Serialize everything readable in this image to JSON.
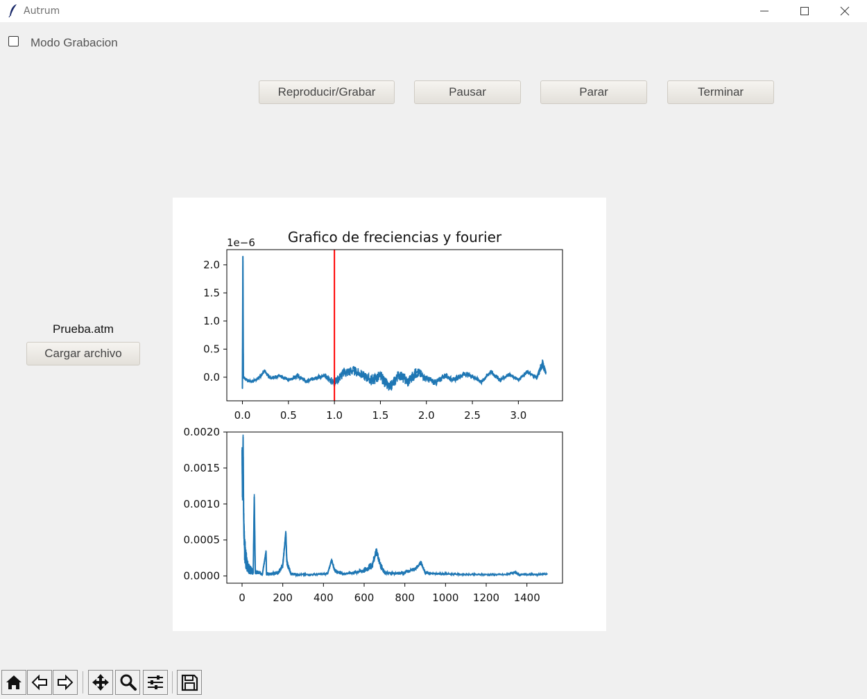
{
  "window": {
    "title": "Autrum",
    "icon": "feather-icon",
    "controls": [
      "minimize-icon",
      "maximize-icon",
      "close-icon"
    ]
  },
  "record_mode": {
    "label": "Modo Grabacion",
    "checked": false
  },
  "controls": {
    "play_record": "Reproducir/Grabar",
    "pause": "Pausar",
    "stop": "Parar",
    "finish": "Terminar"
  },
  "file": {
    "name": "Prueba.atm",
    "load_label": "Cargar archivo"
  },
  "chart_data": [
    {
      "type": "line",
      "title": "Grafico de freciencias y fourier",
      "offset_label": "1e−6",
      "xlim": [
        -0.17,
        3.48
      ],
      "ylim": [
        -0.42,
        2.27
      ],
      "xticks": [
        "0.0",
        "0.5",
        "1.0",
        "1.5",
        "2.0",
        "2.5",
        "3.0"
      ],
      "xtick_values": [
        0.0,
        0.5,
        1.0,
        1.5,
        2.0,
        2.5,
        3.0
      ],
      "yticks": [
        "0.0",
        "0.5",
        "1.0",
        "1.5",
        "2.0"
      ],
      "ytick_values": [
        0.0,
        0.5,
        1.0,
        1.5,
        2.0
      ],
      "series": [
        {
          "color": "#1f77b4",
          "x": [
            0.0,
            0.005,
            0.01,
            0.05,
            0.1,
            0.15,
            0.2,
            0.24,
            0.3,
            0.4,
            0.5,
            0.6,
            0.7,
            0.8,
            0.9,
            1.0,
            1.1,
            1.2,
            1.3,
            1.4,
            1.5,
            1.6,
            1.7,
            1.8,
            1.9,
            2.0,
            2.1,
            2.2,
            2.3,
            2.4,
            2.5,
            2.6,
            2.7,
            2.8,
            2.9,
            3.0,
            3.1,
            3.2,
            3.26,
            3.3
          ],
          "y": [
            -0.2,
            2.15,
            0.0,
            -0.05,
            -0.08,
            -0.04,
            0.02,
            0.12,
            -0.02,
            0.03,
            -0.05,
            0.02,
            -0.08,
            0.0,
            0.02,
            -0.1,
            0.08,
            0.12,
            0.05,
            -0.05,
            0.02,
            -0.2,
            0.05,
            -0.08,
            0.1,
            -0.02,
            -0.1,
            0.03,
            -0.05,
            0.05,
            0.02,
            -0.08,
            0.1,
            -0.05,
            0.05,
            -0.05,
            0.1,
            -0.02,
            0.25,
            0.08
          ],
          "band": [
            0.05,
            0.3,
            0.05,
            0.05,
            0.05,
            0.05,
            0.05,
            0.06,
            0.05,
            0.08,
            0.06,
            0.08,
            0.06,
            0.08,
            0.08,
            0.15,
            0.18,
            0.18,
            0.15,
            0.2,
            0.2,
            0.2,
            0.18,
            0.2,
            0.2,
            0.12,
            0.12,
            0.1,
            0.08,
            0.1,
            0.08,
            0.08,
            0.08,
            0.08,
            0.06,
            0.06,
            0.06,
            0.08,
            0.18,
            0.08
          ]
        }
      ],
      "marker_line": {
        "x": 1.0,
        "color": "#ff0000"
      }
    },
    {
      "type": "line",
      "xlim": [
        -75,
        1575
      ],
      "ylim": [
        -0.0001,
        0.002
      ],
      "xticks": [
        "0",
        "200",
        "400",
        "600",
        "800",
        "1000",
        "1200",
        "1400"
      ],
      "xtick_values": [
        0,
        200,
        400,
        600,
        800,
        1000,
        1200,
        1400
      ],
      "yticks": [
        "0.0000",
        "0.0005",
        "0.0010",
        "0.0015",
        "0.0020"
      ],
      "ytick_values": [
        0,
        0.0005,
        0.001,
        0.0015,
        0.002
      ],
      "series": [
        {
          "color": "#1f77b4",
          "x": [
            0,
            2,
            5,
            8,
            12,
            18,
            25,
            35,
            45,
            55,
            60,
            65,
            75,
            100,
            118,
            120,
            125,
            150,
            180,
            200,
            215,
            220,
            225,
            240,
            280,
            350,
            420,
            440,
            455,
            470,
            500,
            550,
            600,
            640,
            660,
            680,
            700,
            750,
            800,
            850,
            880,
            900,
            950,
            1000,
            1100,
            1200,
            1300,
            1340,
            1360,
            1400,
            1450,
            1500
          ],
          "y": [
            0.00175,
            0.0011,
            0.00193,
            0.0008,
            0.0004,
            0.00025,
            0.00015,
            0.0001,
            8e-05,
            5e-05,
            0.0011,
            5e-05,
            5e-05,
            3e-05,
            0.00034,
            3e-05,
            3e-05,
            3e-05,
            5e-05,
            0.00015,
            0.0006,
            0.0002,
            0.00015,
            3e-05,
            2e-05,
            2e-05,
            3e-05,
            0.00022,
            8e-05,
            5e-05,
            3e-05,
            5e-05,
            8e-05,
            0.00015,
            0.00035,
            0.00015,
            5e-05,
            3e-05,
            5e-05,
            0.0001,
            0.00018,
            5e-05,
            3e-05,
            3e-05,
            2e-05,
            2e-05,
            2e-05,
            5e-05,
            2e-05,
            2e-05,
            2e-05,
            3e-05
          ],
          "band": [
            0.0001,
            0.0003,
            0.0001,
            0.0004,
            0.0004,
            0.0003,
            0.0002,
            0.00015,
            0.0001,
            8e-05,
            0.0001,
            6e-05,
            6e-05,
            5e-05,
            5e-05,
            5e-05,
            5e-05,
            5e-05,
            5e-05,
            8e-05,
            0.0001,
            0.0001,
            8e-05,
            5e-05,
            3e-05,
            3e-05,
            3e-05,
            5e-05,
            5e-05,
            5e-05,
            3e-05,
            5e-05,
            8e-05,
            0.0001,
            0.0001,
            0.0001,
            5e-05,
            4e-05,
            5e-05,
            5e-05,
            6e-05,
            5e-05,
            3e-05,
            3e-05,
            3e-05,
            3e-05,
            3e-05,
            3e-05,
            3e-05,
            3e-05,
            3e-05,
            3e-05
          ]
        }
      ]
    }
  ],
  "toolbar": [
    "home-icon",
    "back-icon",
    "forward-icon",
    "pan-icon",
    "zoom-icon",
    "configure-subplots-icon",
    "save-icon"
  ]
}
